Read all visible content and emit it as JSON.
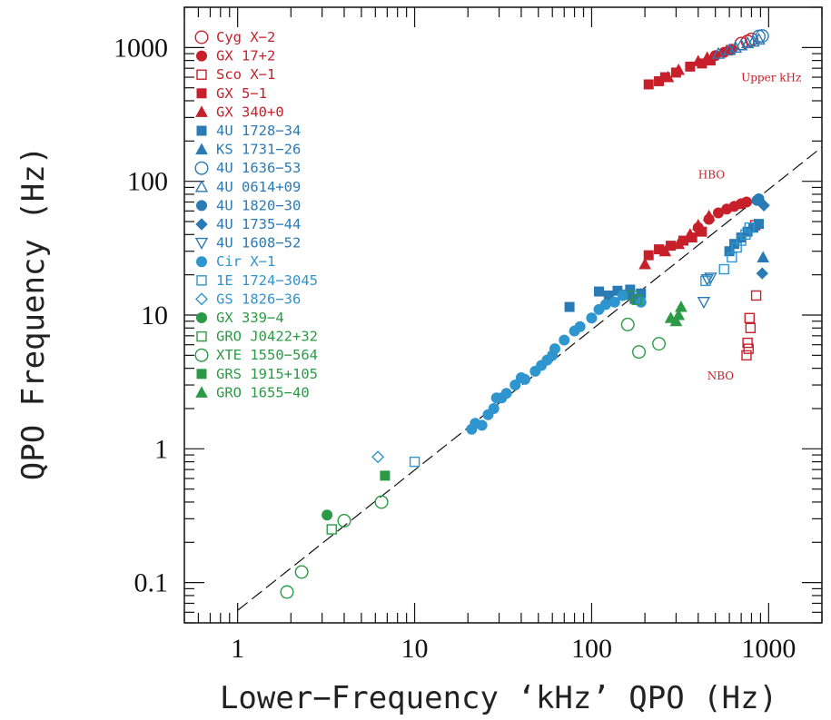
{
  "colors": {
    "red": "#c8202a",
    "blue": "#2a7ab5",
    "lightblue": "#2f95cf",
    "green": "#2c9a45"
  },
  "chart_data": {
    "type": "scatter",
    "xlabel": "Lower−Frequency ‘kHz’ QPO (Hz)",
    "ylabel": "QPO Frequency (Hz)",
    "xscale": "log",
    "yscale": "log",
    "xlim": [
      0.5,
      2000
    ],
    "ylim": [
      0.05,
      2000
    ],
    "x_ticks": [
      1,
      10,
      100,
      1000
    ],
    "y_ticks": [
      0.1,
      1,
      10,
      100,
      1000
    ],
    "x_tick_labels": [
      "1",
      "10",
      "100",
      "1000"
    ],
    "y_tick_labels": [
      "0.1",
      "1",
      "10",
      "100",
      "1000"
    ],
    "legend_position": "top-left",
    "reference_line": {
      "style": "dashed",
      "points": [
        [
          1,
          0.062
        ],
        [
          2000,
          180
        ]
      ]
    },
    "annotations": [
      {
        "text": "Upper kHz",
        "x": 700,
        "y": 560
      },
      {
        "text": "HBO",
        "x": 400,
        "y": 105
      },
      {
        "text": "NBO",
        "x": 450,
        "y": 3.3
      }
    ],
    "series": [
      {
        "name": "Cyg X−2",
        "marker": "circle-open",
        "color": "red",
        "points": [
          [
            700,
            1070
          ],
          [
            760,
            1110
          ],
          [
            800,
            1150
          ]
        ]
      },
      {
        "name": "GX 17+2",
        "marker": "circle-filled",
        "color": "red",
        "points": [
          [
            500,
            870
          ],
          [
            560,
            920
          ],
          [
            620,
            970
          ],
          [
            400,
            45
          ],
          [
            460,
            52
          ],
          [
            520,
            58
          ],
          [
            580,
            62
          ],
          [
            640,
            65
          ],
          [
            700,
            68
          ],
          [
            750,
            70
          ]
        ]
      },
      {
        "name": "Sco X−1",
        "marker": "square-open",
        "color": "red",
        "points": [
          [
            840,
            47
          ],
          [
            850,
            14
          ],
          [
            780,
            9.5
          ],
          [
            790,
            8
          ],
          [
            760,
            6.2
          ],
          [
            770,
            5.6
          ],
          [
            750,
            5
          ]
        ]
      },
      {
        "name": "GX 5−1",
        "marker": "square-filled",
        "color": "red",
        "points": [
          [
            210,
            530
          ],
          [
            240,
            560
          ],
          [
            260,
            600
          ],
          [
            300,
            650
          ],
          [
            360,
            720
          ],
          [
            420,
            760
          ],
          [
            470,
            800
          ],
          [
            210,
            28
          ],
          [
            240,
            31
          ],
          [
            280,
            33
          ],
          [
            330,
            36
          ],
          [
            370,
            38
          ],
          [
            420,
            42
          ]
        ]
      },
      {
        "name": "GX 340+0",
        "marker": "triangle-filled",
        "color": "red",
        "points": [
          [
            270,
            600
          ],
          [
            310,
            680
          ],
          [
            400,
            790
          ],
          [
            450,
            840
          ],
          [
            580,
            950
          ],
          [
            200,
            24
          ],
          [
            260,
            30
          ],
          [
            310,
            34
          ],
          [
            360,
            40
          ],
          [
            400,
            47
          ],
          [
            460,
            55
          ]
        ]
      },
      {
        "name": "4U 1728−34",
        "marker": "square-filled",
        "color": "blue",
        "points": [
          [
            75,
            11.5
          ],
          [
            110,
            15
          ],
          [
            125,
            14
          ],
          [
            140,
            15.2
          ],
          [
            155,
            14.2
          ],
          [
            165,
            15.5
          ],
          [
            175,
            13.2
          ],
          [
            190,
            14.5
          ],
          [
            600,
            30
          ],
          [
            640,
            34
          ],
          [
            700,
            38
          ],
          [
            760,
            42
          ],
          [
            820,
            45
          ],
          [
            880,
            48
          ]
        ]
      },
      {
        "name": "KS 1731−26",
        "marker": "triangle-filled",
        "color": "blue",
        "points": [
          [
            930,
            27
          ]
        ]
      },
      {
        "name": "4U 1636−53",
        "marker": "circle-open",
        "color": "blue",
        "points": [
          [
            880,
            1210
          ],
          [
            920,
            1220
          ]
        ]
      },
      {
        "name": "4U 0614+09",
        "marker": "triangle-open",
        "color": "blue",
        "points": [
          [
            520,
            900
          ],
          [
            600,
            960
          ],
          [
            650,
            1000
          ],
          [
            700,
            1040
          ],
          [
            760,
            1080
          ],
          [
            820,
            1110
          ],
          [
            880,
            1150
          ]
        ]
      },
      {
        "name": "4U 1820−30",
        "marker": "circle-filled",
        "color": "blue",
        "points": [
          [
            860,
            72
          ],
          [
            880,
            74
          ]
        ]
      },
      {
        "name": "4U 1735−44",
        "marker": "diamond-filled",
        "color": "blue",
        "points": [
          [
            920,
            20.5
          ],
          [
            940,
            66
          ]
        ]
      },
      {
        "name": "4U 1608−52",
        "marker": "triangle-down-open",
        "color": "blue",
        "points": [
          [
            430,
            12.5
          ],
          [
            450,
            18.5
          ],
          [
            470,
            19
          ]
        ]
      },
      {
        "name": "Cir X−1",
        "marker": "circle-filled",
        "color": "lightblue",
        "points": [
          [
            21,
            1.4
          ],
          [
            22,
            1.55
          ],
          [
            24,
            1.5
          ],
          [
            26,
            1.8
          ],
          [
            28,
            2.0
          ],
          [
            29,
            2.4
          ],
          [
            31,
            2.4
          ],
          [
            33,
            2.6
          ],
          [
            37,
            3.0
          ],
          [
            40,
            3.4
          ],
          [
            42,
            3.3
          ],
          [
            48,
            3.8
          ],
          [
            52,
            4.2
          ],
          [
            56,
            4.6
          ],
          [
            60,
            5.0
          ],
          [
            62,
            5.6
          ],
          [
            70,
            6.5
          ],
          [
            80,
            7.6
          ],
          [
            86,
            8.2
          ],
          [
            100,
            9.5
          ],
          [
            110,
            11
          ],
          [
            120,
            12
          ],
          [
            135,
            12.5
          ],
          [
            150,
            14
          ],
          [
            190,
            12.5
          ]
        ]
      },
      {
        "name": "1E 1724−3045",
        "marker": "square-open",
        "color": "lightblue",
        "points": [
          [
            10,
            0.8
          ],
          [
            440,
            18
          ],
          [
            560,
            22
          ],
          [
            620,
            27
          ],
          [
            660,
            32
          ],
          [
            700,
            36
          ],
          [
            740,
            40
          ],
          [
            780,
            45
          ]
        ]
      },
      {
        "name": "GS 1826−36",
        "marker": "diamond-open",
        "color": "lightblue",
        "points": [
          [
            6.2,
            0.87
          ]
        ]
      },
      {
        "name": "GX 339−4",
        "marker": "circle-filled",
        "color": "green",
        "points": [
          [
            3.2,
            0.32
          ]
        ]
      },
      {
        "name": "GRO J0422+32",
        "marker": "square-open",
        "color": "green",
        "points": [
          [
            3.4,
            0.25
          ],
          [
            170,
            14
          ],
          [
            180,
            13
          ]
        ]
      },
      {
        "name": "XTE 1550−564",
        "marker": "circle-open",
        "color": "green",
        "points": [
          [
            1.9,
            0.085
          ],
          [
            2.3,
            0.12
          ],
          [
            4.0,
            0.29
          ],
          [
            6.5,
            0.4
          ],
          [
            160,
            8.5
          ],
          [
            185,
            5.3
          ],
          [
            240,
            6.1
          ]
        ]
      },
      {
        "name": "GRS 1915+105",
        "marker": "square-filled",
        "color": "green",
        "points": [
          [
            6.8,
            0.63
          ]
        ]
      },
      {
        "name": "GRO 1655−40",
        "marker": "triangle-filled",
        "color": "green",
        "points": [
          [
            280,
            9.5
          ],
          [
            300,
            9
          ],
          [
            310,
            10
          ],
          [
            320,
            11.5
          ]
        ]
      }
    ]
  }
}
